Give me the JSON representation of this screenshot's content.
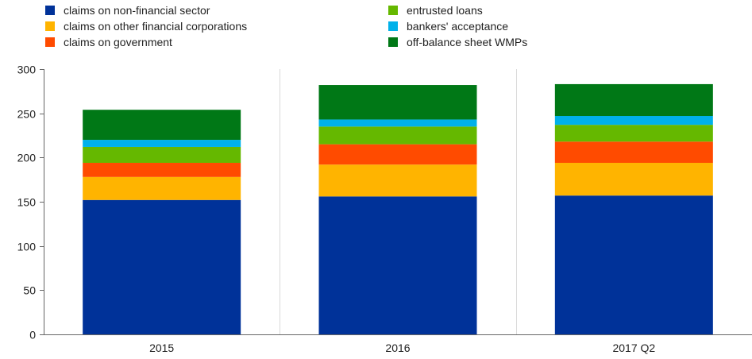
{
  "chart_data": {
    "type": "bar",
    "stacked": true,
    "categories": [
      "2015",
      "2016",
      "2017 Q2"
    ],
    "ylim": [
      0,
      300
    ],
    "yticks": [
      0,
      50,
      100,
      150,
      200,
      250,
      300
    ],
    "xlabel": "",
    "ylabel": "",
    "legend_position": "top",
    "grid": "vertical separators between categories",
    "series": [
      {
        "name": "claims on non-financial sector",
        "color": "#003299",
        "values": [
          152,
          156,
          157
        ]
      },
      {
        "name": "claims on other financial corporations",
        "color": "#FFB400",
        "values": [
          26,
          36,
          37
        ]
      },
      {
        "name": "claims on government",
        "color": "#FF4B00",
        "values": [
          16,
          23,
          24
        ]
      },
      {
        "name": "entrusted loans",
        "color": "#65B800",
        "values": [
          18,
          20,
          19
        ]
      },
      {
        "name": "bankers' acceptance",
        "color": "#00B1EA",
        "values": [
          8,
          8,
          10
        ]
      },
      {
        "name": "off-balance sheet WMPs",
        "color": "#007816",
        "values": [
          34,
          39,
          36
        ]
      }
    ]
  }
}
